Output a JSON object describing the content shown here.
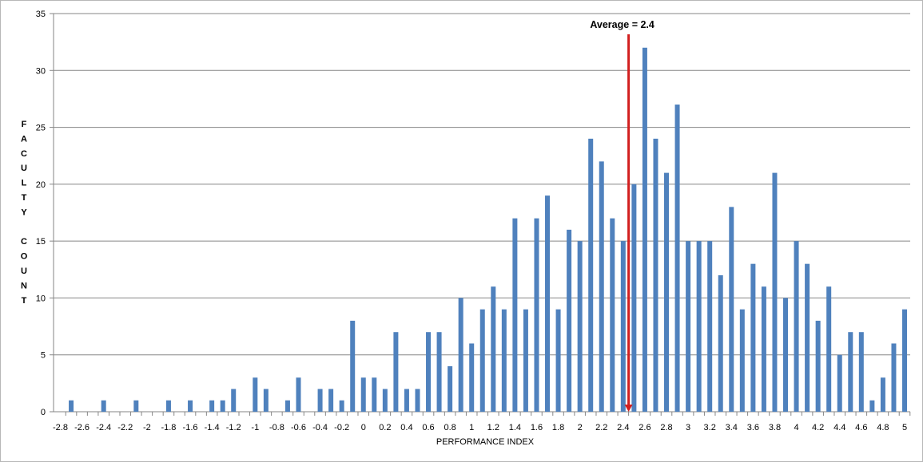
{
  "chart_data": {
    "type": "bar",
    "title": "",
    "xlabel": "PERFORMANCE INDEX",
    "ylabel": "FACULTY COUNT",
    "ylabel_lines": [
      "F",
      "A",
      "C",
      "U",
      "L",
      "T",
      "Y",
      "",
      "C",
      "O",
      "U",
      "N",
      "T"
    ],
    "x_range": [
      -2.8,
      5
    ],
    "ylim": [
      0,
      35
    ],
    "y_ticks": [
      0,
      5,
      10,
      15,
      20,
      25,
      30,
      35
    ],
    "x_ticks": [
      -2.8,
      -2.6,
      -2.4,
      -2.2,
      -2,
      -1.8,
      -1.6,
      -1.4,
      -1.2,
      -1,
      -0.8,
      -0.6,
      -0.4,
      -0.2,
      0,
      0.2,
      0.4,
      0.6,
      0.8,
      1,
      1.2,
      1.4,
      1.6,
      1.8,
      2,
      2.2,
      2.4,
      2.6,
      2.8,
      3,
      3.2,
      3.4,
      3.6,
      3.8,
      4,
      4.2,
      4.4,
      4.6,
      4.8,
      5
    ],
    "grid": "horizontal",
    "legend": "none",
    "series": [
      {
        "points": [
          [
            -2.7,
            1
          ],
          [
            -2.4,
            1
          ],
          [
            -2.1,
            1
          ],
          [
            -1.8,
            1
          ],
          [
            -1.6,
            1
          ],
          [
            -1.4,
            1
          ],
          [
            -1.3,
            1
          ],
          [
            -1.2,
            2
          ],
          [
            -1.0,
            3
          ],
          [
            -0.9,
            2
          ],
          [
            -0.7,
            1
          ],
          [
            -0.6,
            3
          ],
          [
            -0.4,
            2
          ],
          [
            -0.3,
            2
          ],
          [
            -0.2,
            1
          ],
          [
            -0.1,
            8
          ],
          [
            0.0,
            3
          ],
          [
            0.1,
            3
          ],
          [
            0.2,
            2
          ],
          [
            0.3,
            7
          ],
          [
            0.4,
            2
          ],
          [
            0.5,
            2
          ],
          [
            0.6,
            7
          ],
          [
            0.7,
            7
          ],
          [
            0.8,
            4
          ],
          [
            0.9,
            10
          ],
          [
            1.0,
            6
          ],
          [
            1.1,
            9
          ],
          [
            1.2,
            11
          ],
          [
            1.3,
            9
          ],
          [
            1.4,
            17
          ],
          [
            1.5,
            9
          ],
          [
            1.6,
            17
          ],
          [
            1.7,
            19
          ],
          [
            1.8,
            9
          ],
          [
            1.9,
            16
          ],
          [
            2.0,
            15
          ],
          [
            2.1,
            24
          ],
          [
            2.2,
            22
          ],
          [
            2.3,
            17
          ],
          [
            2.4,
            15
          ],
          [
            2.5,
            20
          ],
          [
            2.6,
            32
          ],
          [
            2.7,
            24
          ],
          [
            2.8,
            21
          ],
          [
            2.9,
            27
          ],
          [
            3.0,
            15
          ],
          [
            3.1,
            15
          ],
          [
            3.2,
            15
          ],
          [
            3.3,
            12
          ],
          [
            3.4,
            18
          ],
          [
            3.5,
            9
          ],
          [
            3.6,
            13
          ],
          [
            3.7,
            11
          ],
          [
            3.8,
            21
          ],
          [
            3.9,
            10
          ],
          [
            4.0,
            15
          ],
          [
            4.1,
            13
          ],
          [
            4.2,
            8
          ],
          [
            4.3,
            11
          ],
          [
            4.4,
            5
          ],
          [
            4.5,
            7
          ],
          [
            4.6,
            7
          ],
          [
            4.7,
            1
          ],
          [
            4.8,
            3
          ],
          [
            4.9,
            6
          ],
          [
            5.0,
            9
          ]
        ]
      }
    ],
    "colors": {
      "bar": "#4f81bd",
      "grid": "#868686",
      "annotation": "#d21f1f"
    },
    "annotation": {
      "label": "Average = 2.4",
      "x": 2.45
    }
  }
}
